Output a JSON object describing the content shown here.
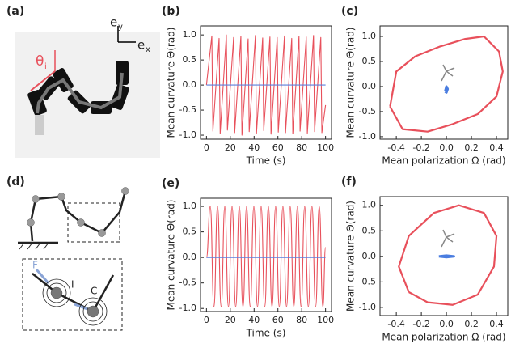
{
  "figure": {
    "panel_a": "(a)",
    "panel_d": "(d)",
    "ey_e": "e",
    "ey_sub": "y",
    "ex_e": "e",
    "ex_sub": "x",
    "theta": "θ",
    "theta_sub": "i",
    "label_F": "F",
    "label_I": "I",
    "label_C": "C"
  },
  "chart_data": [
    {
      "type": "line",
      "panel": "(b)",
      "xlabel": "Time (s)",
      "ylabel": "Mean curvature Θ(rad)",
      "interpolation": "linear",
      "xlim": [
        -5,
        105
      ],
      "ylim": [
        -1.08,
        1.18
      ],
      "xticks": [
        0,
        20,
        40,
        60,
        80,
        100
      ],
      "yticks": [
        {
          "value": 1,
          "label": "1.0"
        },
        0.5,
        {
          "value": 0,
          "label": "0.0"
        },
        -0.5,
        {
          "value": -1,
          "label": "-1.0"
        }
      ],
      "series": [
        {
          "color": "#e8505b",
          "x": [
            0,
            4.5,
            5.4,
            10.6,
            11.5,
            16.7,
            17.6,
            22.8,
            23.7,
            28.9,
            29.8,
            35.0,
            35.9,
            41.1,
            42.0,
            47.2,
            48.1,
            53.3,
            54.2,
            59.4,
            60.3,
            65.5,
            66.4,
            71.6,
            72.5,
            77.7,
            78.6,
            83.8,
            84.7,
            89.9,
            90.8,
            96.0,
            96.9,
            100
          ],
          "values": [
            0,
            0.98,
            -0.92,
            0.93,
            -0.97,
            1.0,
            -0.9,
            0.95,
            -0.95,
            0.97,
            -1.0,
            0.92,
            -0.93,
            0.99,
            -0.96,
            0.94,
            -0.91,
            0.96,
            -0.98,
            0.95,
            -0.94,
            0.98,
            -0.95,
            0.93,
            -0.97,
            0.97,
            -0.92,
            0.96,
            -0.96,
            0.99,
            -0.93,
            0.95,
            -0.95,
            -0.4
          ]
        },
        {
          "color": "#5b7fde",
          "x": [
            0,
            100
          ],
          "values": [
            0,
            0
          ]
        }
      ]
    },
    {
      "type": "line",
      "panel": "(c)",
      "xlabel": "Mean polarization Ω (rad)",
      "ylabel": "Mean curvature Θ(rad)",
      "interpolation": "linear",
      "xlim": [
        -0.53,
        0.49
      ],
      "ylim": [
        -1.05,
        1.21
      ],
      "xticks": [
        -0.4,
        -0.2,
        {
          "value": 0,
          "label": "0.0"
        },
        0.2,
        0.4
      ],
      "yticks": [
        {
          "value": 1,
          "label": "1.0"
        },
        0.5,
        {
          "value": 0,
          "label": "0.0"
        },
        -0.5,
        {
          "value": -1,
          "label": "-1.0"
        }
      ],
      "series": [
        {
          "color": "#e8505b",
          "x": [
            -0.45,
            -0.4,
            -0.25,
            -0.05,
            0.15,
            0.3,
            0.42,
            0.45,
            0.4,
            0.25,
            0.05,
            -0.15,
            -0.35,
            -0.45
          ],
          "values": [
            -0.4,
            0.3,
            0.6,
            0.8,
            0.95,
            1.0,
            0.7,
            0.3,
            -0.2,
            -0.55,
            -0.75,
            -0.9,
            -0.85,
            -0.4
          ]
        },
        {
          "color": "#4a7de0",
          "x": [
            -0.01,
            0.0,
            0.01,
            0.0,
            -0.01
          ],
          "values": [
            -0.1,
            0.0,
            -0.05,
            -0.12,
            -0.1
          ]
        }
      ]
    },
    {
      "type": "line",
      "panel": "(e)",
      "xlabel": "Time (s)",
      "ylabel": "Mean curvature Θ(rad)",
      "interpolation": "smooth",
      "xlim": [
        -5,
        105
      ],
      "ylim": [
        -1.06,
        1.16
      ],
      "xticks": [
        0,
        20,
        40,
        60,
        80,
        100
      ],
      "yticks": [
        {
          "value": 1,
          "label": "1.0"
        },
        0.5,
        {
          "value": 0,
          "label": "0.0"
        },
        -0.5,
        {
          "value": -1,
          "label": "-1.0"
        }
      ],
      "series": [
        {
          "color": "#e8505b",
          "x": [
            0,
            3.2,
            6.25,
            9.3,
            12.35,
            15.4,
            18.45,
            21.5,
            24.55,
            27.6,
            30.65,
            33.7,
            36.75,
            39.8,
            42.85,
            45.9,
            48.95,
            52.0,
            55.05,
            58.1,
            61.15,
            64.2,
            67.25,
            70.3,
            73.35,
            76.4,
            79.45,
            82.5,
            85.55,
            88.6,
            91.65,
            94.7,
            97.75,
            100
          ],
          "values": [
            0,
            1.0,
            -0.97,
            1.0,
            -0.97,
            1.0,
            -0.97,
            1.0,
            -0.97,
            1.0,
            -0.97,
            1.0,
            -0.97,
            1.0,
            -0.97,
            1.0,
            -0.97,
            1.0,
            -0.97,
            1.0,
            -0.97,
            1.0,
            -0.97,
            1.0,
            -0.97,
            1.0,
            -0.97,
            1.0,
            -0.97,
            1.0,
            -0.97,
            1.0,
            -0.97,
            0.2
          ]
        },
        {
          "color": "#5b7fde",
          "x": [
            0,
            100
          ],
          "values": [
            0,
            0
          ]
        }
      ]
    },
    {
      "type": "line",
      "panel": "(f)",
      "xlabel": "Mean polarization Ω (rad)",
      "ylabel": "Mean curvature  Θ(rad)",
      "interpolation": "linear",
      "xlim": [
        -0.53,
        0.49
      ],
      "ylim": [
        -1.16,
        1.17
      ],
      "xticks": [
        -0.4,
        -0.2,
        {
          "value": 0,
          "label": "0.0"
        },
        0.2,
        0.4
      ],
      "yticks": [
        {
          "value": 1,
          "label": "1.0"
        },
        0.5,
        {
          "value": 0,
          "label": "0.0"
        },
        -0.5,
        {
          "value": -1,
          "label": "-1.0"
        }
      ],
      "series": [
        {
          "color": "#e8505b",
          "x": [
            -0.3,
            -0.38,
            -0.3,
            -0.1,
            0.1,
            0.3,
            0.4,
            0.38,
            0.25,
            0.05,
            -0.15,
            -0.3
          ],
          "values": [
            -0.7,
            -0.2,
            0.4,
            0.85,
            1.0,
            0.85,
            0.4,
            -0.2,
            -0.75,
            -0.95,
            -0.9,
            -0.7
          ]
        },
        {
          "color": "#4a7de0",
          "x": [
            -0.06,
            0,
            0.06,
            0,
            -0.06
          ],
          "values": [
            0,
            0.015,
            0,
            -0.015,
            0
          ]
        }
      ]
    }
  ]
}
